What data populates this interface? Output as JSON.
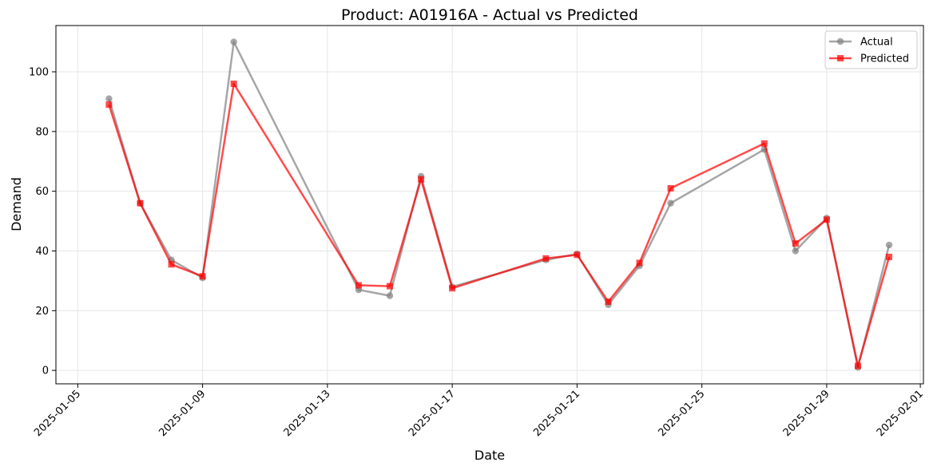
{
  "chart_data": {
    "type": "line",
    "title": "Product: A01916A - Actual vs Predicted",
    "xlabel": "Date",
    "ylabel": "Demand",
    "x_type": "date",
    "xlim": [
      "2025-01-04",
      "2025-02-01"
    ],
    "ylim": [
      -4.5,
      115.5
    ],
    "x_ticks": [
      "2025-01-05",
      "2025-01-09",
      "2025-01-13",
      "2025-01-17",
      "2025-01-21",
      "2025-01-25",
      "2025-01-29",
      "2025-02-01"
    ],
    "y_ticks": [
      0,
      20,
      40,
      60,
      80,
      100
    ],
    "grid": true,
    "legend_position": "top-right",
    "x": [
      "2025-01-06",
      "2025-01-07",
      "2025-01-08",
      "2025-01-09",
      "2025-01-10",
      "2025-01-14",
      "2025-01-15",
      "2025-01-16",
      "2025-01-17",
      "2025-01-20",
      "2025-01-21",
      "2025-01-22",
      "2025-01-23",
      "2025-01-24",
      "2025-01-27",
      "2025-01-28",
      "2025-01-29",
      "2025-01-30",
      "2025-01-31"
    ],
    "series": [
      {
        "name": "Actual",
        "color": "#808080",
        "marker": "circle",
        "values": [
          91,
          56,
          37,
          31,
          110,
          27,
          25,
          65,
          28,
          37,
          39,
          22,
          35,
          56,
          74,
          40,
          51,
          1,
          42
        ]
      },
      {
        "name": "Predicted",
        "color": "#ff0000",
        "marker": "square",
        "values": [
          89,
          56,
          35.5,
          31.5,
          96,
          28.5,
          28.2,
          64,
          27.5,
          37.5,
          38.7,
          23,
          36,
          61,
          76,
          42.5,
          50.5,
          1.5,
          38
        ]
      }
    ]
  }
}
